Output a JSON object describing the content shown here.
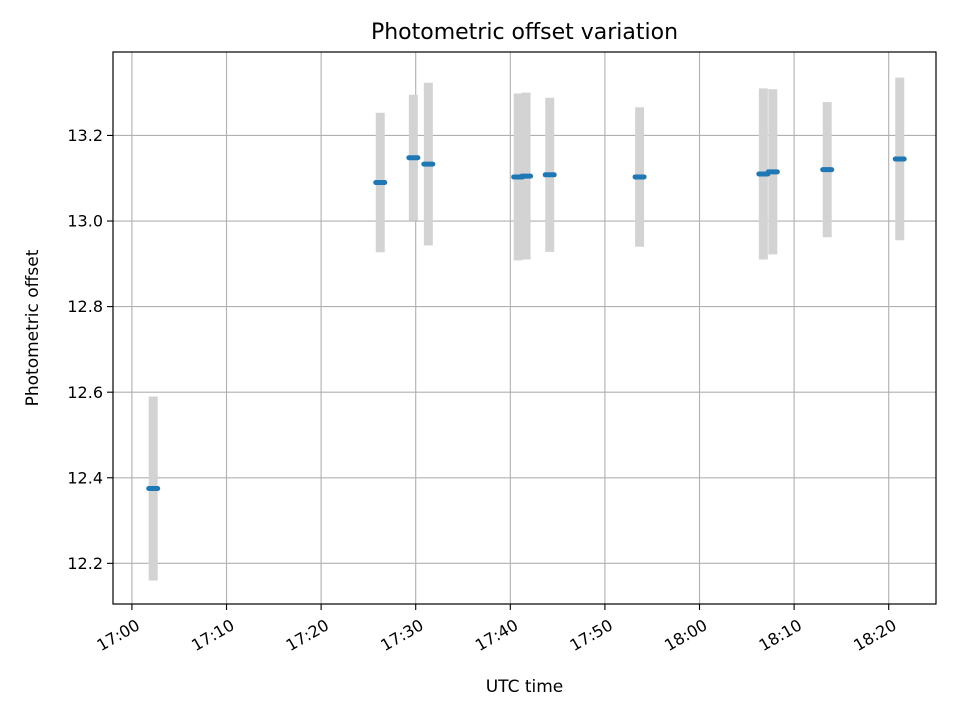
{
  "chart_data": {
    "type": "scatter",
    "title": "Photometric offset variation",
    "xlabel": "UTC time",
    "ylabel": "Photometric offset",
    "x_ticks": [
      "17:00",
      "17:10",
      "17:20",
      "17:30",
      "17:40",
      "17:50",
      "18:00",
      "18:10",
      "18:20"
    ],
    "y_ticks": [
      "12.2",
      "12.4",
      "12.6",
      "12.8",
      "13.0",
      "13.2"
    ],
    "xlim": [
      "16:58:00",
      "18:25:00"
    ],
    "ylim": [
      12.105,
      13.395
    ],
    "grid": true,
    "colors": {
      "point": "#1f77b4",
      "errorbar": "#d3d3d3",
      "grid": "#b0b0b0"
    },
    "points": [
      {
        "x": "17:02:15",
        "y": 12.375,
        "yerr": 0.215
      },
      {
        "x": "17:26:15",
        "y": 13.09,
        "yerr": 0.163
      },
      {
        "x": "17:29:45",
        "y": 13.148,
        "yerr": 0.147
      },
      {
        "x": "17:31:20",
        "y": 13.133,
        "yerr": 0.19
      },
      {
        "x": "17:40:50",
        "y": 13.103,
        "yerr": 0.195
      },
      {
        "x": "17:41:40",
        "y": 13.105,
        "yerr": 0.195
      },
      {
        "x": "17:44:10",
        "y": 13.108,
        "yerr": 0.18
      },
      {
        "x": "17:53:40",
        "y": 13.103,
        "yerr": 0.163
      },
      {
        "x": "18:06:45",
        "y": 13.11,
        "yerr": 0.2
      },
      {
        "x": "18:07:45",
        "y": 13.115,
        "yerr": 0.193
      },
      {
        "x": "18:13:30",
        "y": 13.12,
        "yerr": 0.158
      },
      {
        "x": "18:21:10",
        "y": 13.145,
        "yerr": 0.19
      }
    ]
  }
}
